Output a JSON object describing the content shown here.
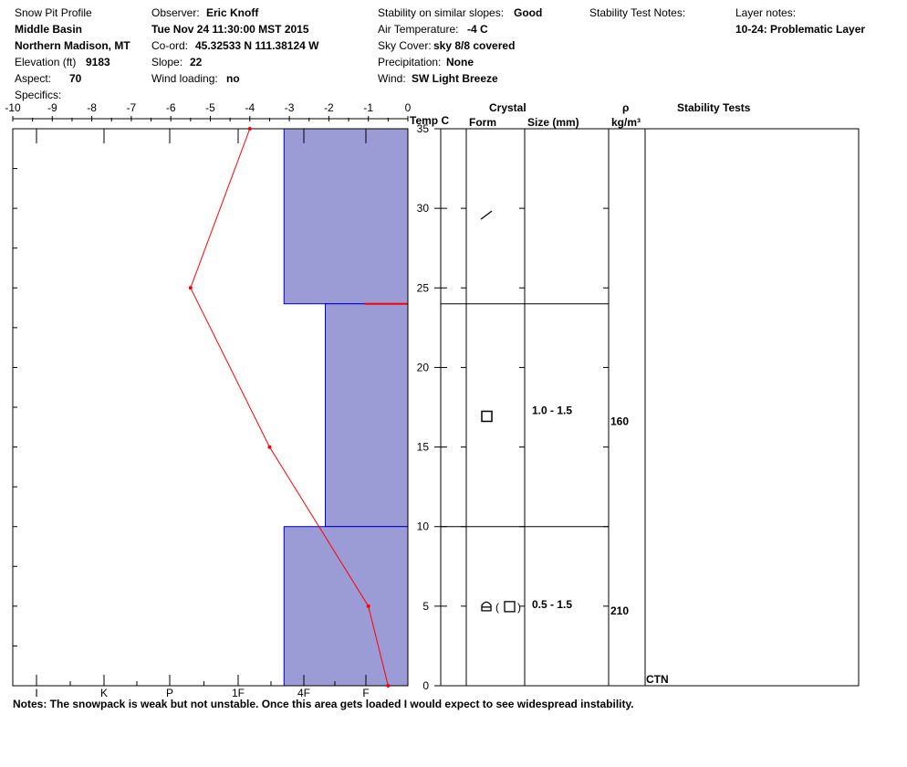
{
  "header": {
    "title": "Snow Pit Profile",
    "location": "Middle Basin",
    "region": "Northern Madison, MT",
    "elevation_label": "Elevation (ft)",
    "elevation_value": "9183",
    "aspect_label": "Aspect:",
    "aspect_value": "70",
    "specifics_label": "Specifics:",
    "observer_label": "Observer:",
    "observer_value": "Eric Knoff",
    "datetime": "Tue Nov 24 11:30:00 MST 2015",
    "coord_label": "Co-ord:",
    "coord_value": "45.32533 N 111.38124 W",
    "slope_label": "Slope:",
    "slope_value": "22",
    "wind_loading_label": "Wind loading:",
    "wind_loading_value": "no",
    "stability_label": "Stability on similar slopes:",
    "stability_value": "Good",
    "air_temp_label": "Air Temperature:",
    "air_temp_value": "-4 C",
    "sky_label": "Sky Cover:",
    "sky_value": "sky 8/8 covered",
    "precip_label": "Precipitation:",
    "precip_value": "None",
    "wind_label": "Wind:",
    "wind_value": "SW Light Breeze",
    "stability_notes_label": "Stability Test Notes:",
    "layer_notes_label": "Layer notes:",
    "layer_notes_value": "10-24: Problematic Layer"
  },
  "columns": {
    "temp_label": "Temp C",
    "crystal": "Crystal",
    "form": "Form",
    "size": "Size (mm)",
    "rho": "ρ",
    "rho_unit": "kg/m³",
    "stability_tests": "Stability Tests"
  },
  "notes": "Notes:  The snowpack is weak but not unstable. Once this area gets loaded I would expect to see widespread instability.",
  "colors": {
    "hardness_fill": "#9B9BD6",
    "hardness_stroke": "#0000C8",
    "temp_line": "#FF0000",
    "weak_layer": "#FF0000"
  },
  "chart_data": {
    "type": "line",
    "temp_axis": {
      "ticks": [
        "-10",
        "-9",
        "-8",
        "-7",
        "-6",
        "-5",
        "-4",
        "-3",
        "-2",
        "-1",
        "0"
      ],
      "range": [
        -10,
        0
      ]
    },
    "depth_axis": {
      "ticks": [
        "0",
        "5",
        "10",
        "15",
        "20",
        "25",
        "30",
        "35"
      ],
      "range": [
        0,
        35
      ]
    },
    "hardness_axis": {
      "ticks": [
        "I",
        "K",
        "P",
        "1F",
        "4F",
        "F"
      ]
    },
    "temperature_profile": [
      {
        "depth": 35,
        "temp": -4.0
      },
      {
        "depth": 25,
        "temp": -5.5
      },
      {
        "depth": 15,
        "temp": -3.5
      },
      {
        "depth": 5,
        "temp": -1.0
      },
      {
        "depth": 0,
        "temp": -0.5
      }
    ],
    "hardness_layers": [
      {
        "bottom": 24,
        "top": 35,
        "hardness": 1.65
      },
      {
        "bottom": 10,
        "top": 24,
        "hardness": 1.1
      },
      {
        "bottom": 0,
        "top": 10,
        "hardness": 1.65
      }
    ],
    "weak_layer_depth": 24,
    "layers": [
      {
        "top": 35,
        "bottom": 24,
        "form": "precip-particles",
        "size": "",
        "density": ""
      },
      {
        "top": 24,
        "bottom": 10,
        "form": "faceted",
        "size": "1.0 - 1.5",
        "density": "160"
      },
      {
        "top": 10,
        "bottom": 0,
        "form": "depth-hoar-faceted",
        "size": "0.5 - 1.5",
        "density": "210"
      }
    ],
    "stability_tests": [
      {
        "label": "CTN",
        "depth": 0
      }
    ]
  }
}
